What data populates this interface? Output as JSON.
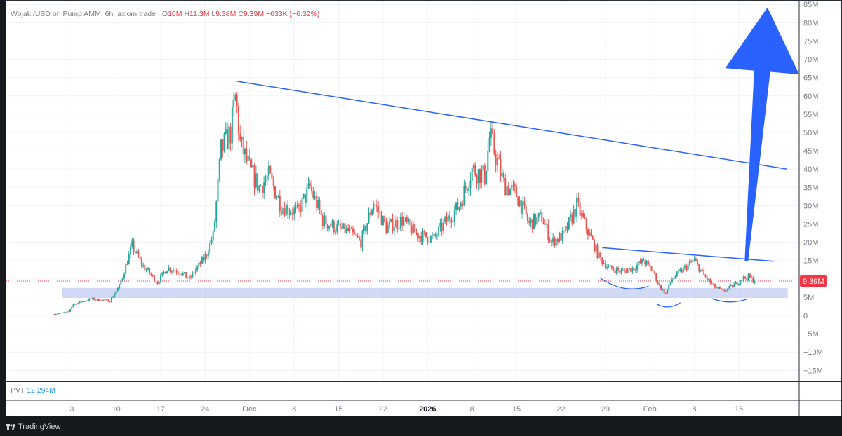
{
  "legend": {
    "symbol": "Wojak /USD on Pump AMM, 6h, axiom.trade",
    "o_label": "O",
    "o_value": "10M",
    "h_label": "H",
    "h_value": "11.3M",
    "l_label": "L",
    "l_value": "9.38M",
    "c_label": "C",
    "c_value": "9.39M",
    "change": "−633K (−6.32%)"
  },
  "indicator": {
    "name": "PVT",
    "value": "12.294M"
  },
  "footer": {
    "brand": "TradingView"
  },
  "colors": {
    "up": "#26a69a",
    "down": "#ef5350",
    "drawing": "#2962ff",
    "zone": "#b2bff0",
    "price_line": "#f23645",
    "grid": "#f0f3fa"
  },
  "chart_data": {
    "type": "candlestick",
    "title": "Wojak /USD on Pump AMM, 6h, axiom.trade",
    "interval": "6h",
    "y_unit": "USD market cap",
    "y_ticks": [
      {
        "v": 85,
        "t": "85M"
      },
      {
        "v": 80,
        "t": "80M"
      },
      {
        "v": 75,
        "t": "75M"
      },
      {
        "v": 70,
        "t": "70M"
      },
      {
        "v": 65,
        "t": "65M"
      },
      {
        "v": 60,
        "t": "60M"
      },
      {
        "v": 55,
        "t": "55M"
      },
      {
        "v": 50,
        "t": "50M"
      },
      {
        "v": 45,
        "t": "45M"
      },
      {
        "v": 40,
        "t": "40M"
      },
      {
        "v": 35,
        "t": "35M"
      },
      {
        "v": 30,
        "t": "30M"
      },
      {
        "v": 25,
        "t": "25M"
      },
      {
        "v": 20,
        "t": "20M"
      },
      {
        "v": 15,
        "t": "15M"
      },
      {
        "v": 10,
        "t": "10M"
      },
      {
        "v": 5,
        "t": "5M"
      },
      {
        "v": 0,
        "t": "0"
      },
      {
        "v": -5,
        "t": "−5M"
      },
      {
        "v": -10,
        "t": "−10M"
      },
      {
        "v": -15,
        "t": "−15M"
      }
    ],
    "ylim": [
      -18,
      86
    ],
    "x_ticks": [
      {
        "day": 3,
        "t": "3"
      },
      {
        "day": 10,
        "t": "10"
      },
      {
        "day": 17,
        "t": "17"
      },
      {
        "day": 24,
        "t": "24"
      },
      {
        "day": 31,
        "t": "Dec"
      },
      {
        "day": 38,
        "t": "8"
      },
      {
        "day": 45,
        "t": "15"
      },
      {
        "day": 52,
        "t": "22"
      },
      {
        "day": 59,
        "t": "2026",
        "strong": true
      },
      {
        "day": 66,
        "t": "8"
      },
      {
        "day": 73,
        "t": "15"
      },
      {
        "day": 80,
        "t": "22"
      },
      {
        "day": 87,
        "t": "29"
      },
      {
        "day": 94,
        "t": "Feb"
      },
      {
        "day": 101,
        "t": "8"
      },
      {
        "day": 108,
        "t": "15"
      }
    ],
    "xlim": [
      -7.3,
      117.5
    ],
    "last_price": 9.39,
    "last_price_label": "9.39M",
    "anchors": [
      [
        0.0,
        0.3
      ],
      [
        2.5,
        1.0
      ],
      [
        3.2,
        3.0
      ],
      [
        6.0,
        4.5
      ],
      [
        9.0,
        4.0
      ],
      [
        10.5,
        8.0
      ],
      [
        12.5,
        19.0
      ],
      [
        14.0,
        14.0
      ],
      [
        16.5,
        9.0
      ],
      [
        18.0,
        13.0
      ],
      [
        20.0,
        12.0
      ],
      [
        21.5,
        10.0
      ],
      [
        24.0,
        16.0
      ],
      [
        25.3,
        22.0
      ],
      [
        26.5,
        45.0
      ],
      [
        28.0,
        50.0
      ],
      [
        28.8,
        60.0
      ],
      [
        29.5,
        47.0
      ],
      [
        31.0,
        40.0
      ],
      [
        32.5,
        35.0
      ],
      [
        34.0,
        38.0
      ],
      [
        36.0,
        30.0
      ],
      [
        38.5,
        28.0
      ],
      [
        40.5,
        35.0
      ],
      [
        42.5,
        26.0
      ],
      [
        44.5,
        24.0
      ],
      [
        46.5,
        23.0
      ],
      [
        48.5,
        20.0
      ],
      [
        50.5,
        31.0
      ],
      [
        52.5,
        24.0
      ],
      [
        55.0,
        26.0
      ],
      [
        57.5,
        22.0
      ],
      [
        60.0,
        21.0
      ],
      [
        62.0,
        26.0
      ],
      [
        64.0,
        30.0
      ],
      [
        66.0,
        40.0
      ],
      [
        68.0,
        38.0
      ],
      [
        68.8,
        49.0
      ],
      [
        69.5,
        45.0
      ],
      [
        71.0,
        36.0
      ],
      [
        73.0,
        33.0
      ],
      [
        75.0,
        25.0
      ],
      [
        77.0,
        27.0
      ],
      [
        78.5,
        20.0
      ],
      [
        80.5,
        22.0
      ],
      [
        82.5,
        30.0
      ],
      [
        84.0,
        24.0
      ],
      [
        86.0,
        16.0
      ],
      [
        87.5,
        13.0
      ],
      [
        89.5,
        12.0
      ],
      [
        91.5,
        13.0
      ],
      [
        93.0,
        15.0
      ],
      [
        94.5,
        12.0
      ],
      [
        95.5,
        8.0
      ],
      [
        96.5,
        6.0
      ],
      [
        97.5,
        10.0
      ],
      [
        99.5,
        13.0
      ],
      [
        101.0,
        15.0
      ],
      [
        102.5,
        11.0
      ],
      [
        104.0,
        8.0
      ],
      [
        105.5,
        6.5
      ],
      [
        107.0,
        8.0
      ],
      [
        108.5,
        10.0
      ],
      [
        109.5,
        10.5
      ],
      [
        110.5,
        9.39
      ]
    ],
    "drawings": {
      "descending_trendline": [
        [
          29.0,
          64.0
        ],
        [
          115.5,
          40.0
        ]
      ],
      "lower_trendline": [
        [
          86.5,
          18.5
        ],
        [
          113.5,
          14.8
        ]
      ],
      "support_zone": {
        "day_from": 1.5,
        "day_to": 115.7,
        "price_from": 4.8,
        "price_to": 7.5
      },
      "arrow": {
        "tail": [
          109.2,
          15.0
        ],
        "head": [
          112.5,
          84.0
        ]
      }
    }
  }
}
